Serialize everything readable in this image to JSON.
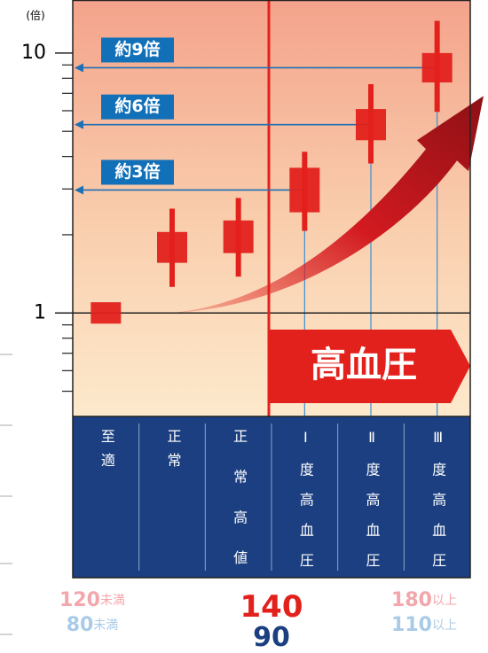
{
  "chart_data": {
    "type": "candlestick",
    "unit_label": "(倍)",
    "categories": [
      "至適",
      "正常",
      "正常高値",
      "Ⅰ度高血圧",
      "Ⅱ度高血圧",
      "Ⅲ度高血圧"
    ],
    "series": [
      {
        "color": "#e3211c",
        "whisker_high": [
          null,
          2.52,
          2.77,
          4.17,
          7.59,
          13.3
        ],
        "box_high": [
          1.1,
          2.05,
          2.27,
          3.62,
          6.09,
          10.0
        ],
        "box_low": [
          0.91,
          1.56,
          1.7,
          2.44,
          4.62,
          7.71
        ],
        "whisker_low": [
          null,
          1.26,
          1.38,
          2.07,
          3.76,
          5.94
        ]
      }
    ],
    "log_scale": true,
    "ylim": [
      0.4,
      16
    ],
    "yticks": [
      1,
      10
    ],
    "minor_yticks": [
      0.5,
      0.6,
      0.7,
      0.8,
      0.9,
      2,
      3,
      4,
      5,
      6,
      7,
      8,
      9
    ],
    "annotations": [
      {
        "label": "約9倍",
        "category": "Ⅲ度高血圧"
      },
      {
        "label": "約6倍",
        "category": "Ⅱ度高血圧"
      },
      {
        "label": "約3倍",
        "category": "Ⅰ度高血圧"
      }
    ],
    "banner": "高血圧",
    "bottom_labels": [
      {
        "number": "120",
        "unit": "未満",
        "color": "#f3a6ab"
      },
      {
        "number": "80",
        "unit": "未満",
        "color": "#a9cbe8"
      },
      {
        "number": "140",
        "color": "#e3211c"
      },
      {
        "number": "90",
        "color": "#1b3f80"
      },
      {
        "number": "180",
        "unit": "以上",
        "color": "#f3a6ab"
      },
      {
        "number": "110",
        "unit": "以上",
        "color": "#a9cbe8"
      }
    ]
  }
}
